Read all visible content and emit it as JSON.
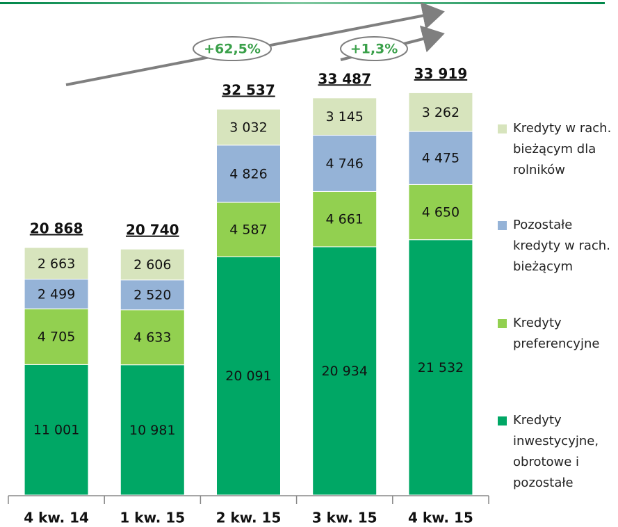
{
  "chart_data": {
    "type": "stacked_bar",
    "categories": [
      "4 kw. 14",
      "1 kw. 15",
      "2 kw. 15",
      "3 kw. 15",
      "4 kw. 15"
    ],
    "series": [
      {
        "name": "Kredyty inwestycyjne, obrotowe i pozostałe",
        "color": "#00a765",
        "values": [
          11001,
          10981,
          20091,
          20934,
          21532
        ],
        "value_labels": [
          "11 001",
          "10 981",
          "20 091",
          "20 934",
          "21 532"
        ]
      },
      {
        "name": "Kredyty preferencyjne",
        "color": "#92d050",
        "values": [
          4705,
          4633,
          4587,
          4661,
          4650
        ],
        "value_labels": [
          "4 705",
          "4 633",
          "4 587",
          "4 661",
          "4 650"
        ]
      },
      {
        "name": "Pozostałe kredyty w rach. bieżącym",
        "color": "#95b3d7",
        "values": [
          2499,
          2520,
          4826,
          4746,
          4475
        ],
        "value_labels": [
          "2 499",
          "2 520",
          "4 826",
          "4 746",
          "4 475"
        ]
      },
      {
        "name": "Kredyty w rach. bieżącym dla rolników",
        "color": "#d7e4bd",
        "values": [
          2663,
          2606,
          3032,
          3145,
          3262
        ],
        "value_labels": [
          "2 663",
          "2 606",
          "3 032",
          "3 145",
          "3 262"
        ]
      }
    ],
    "totals": [
      20868,
      20740,
      32537,
      33487,
      33919
    ],
    "total_labels": [
      "20 868",
      "20 740",
      "32 537",
      "33 487",
      "33 919"
    ],
    "annotations": [
      "+62,5%",
      "+1,3%"
    ],
    "ylim": [
      0,
      35000
    ]
  }
}
